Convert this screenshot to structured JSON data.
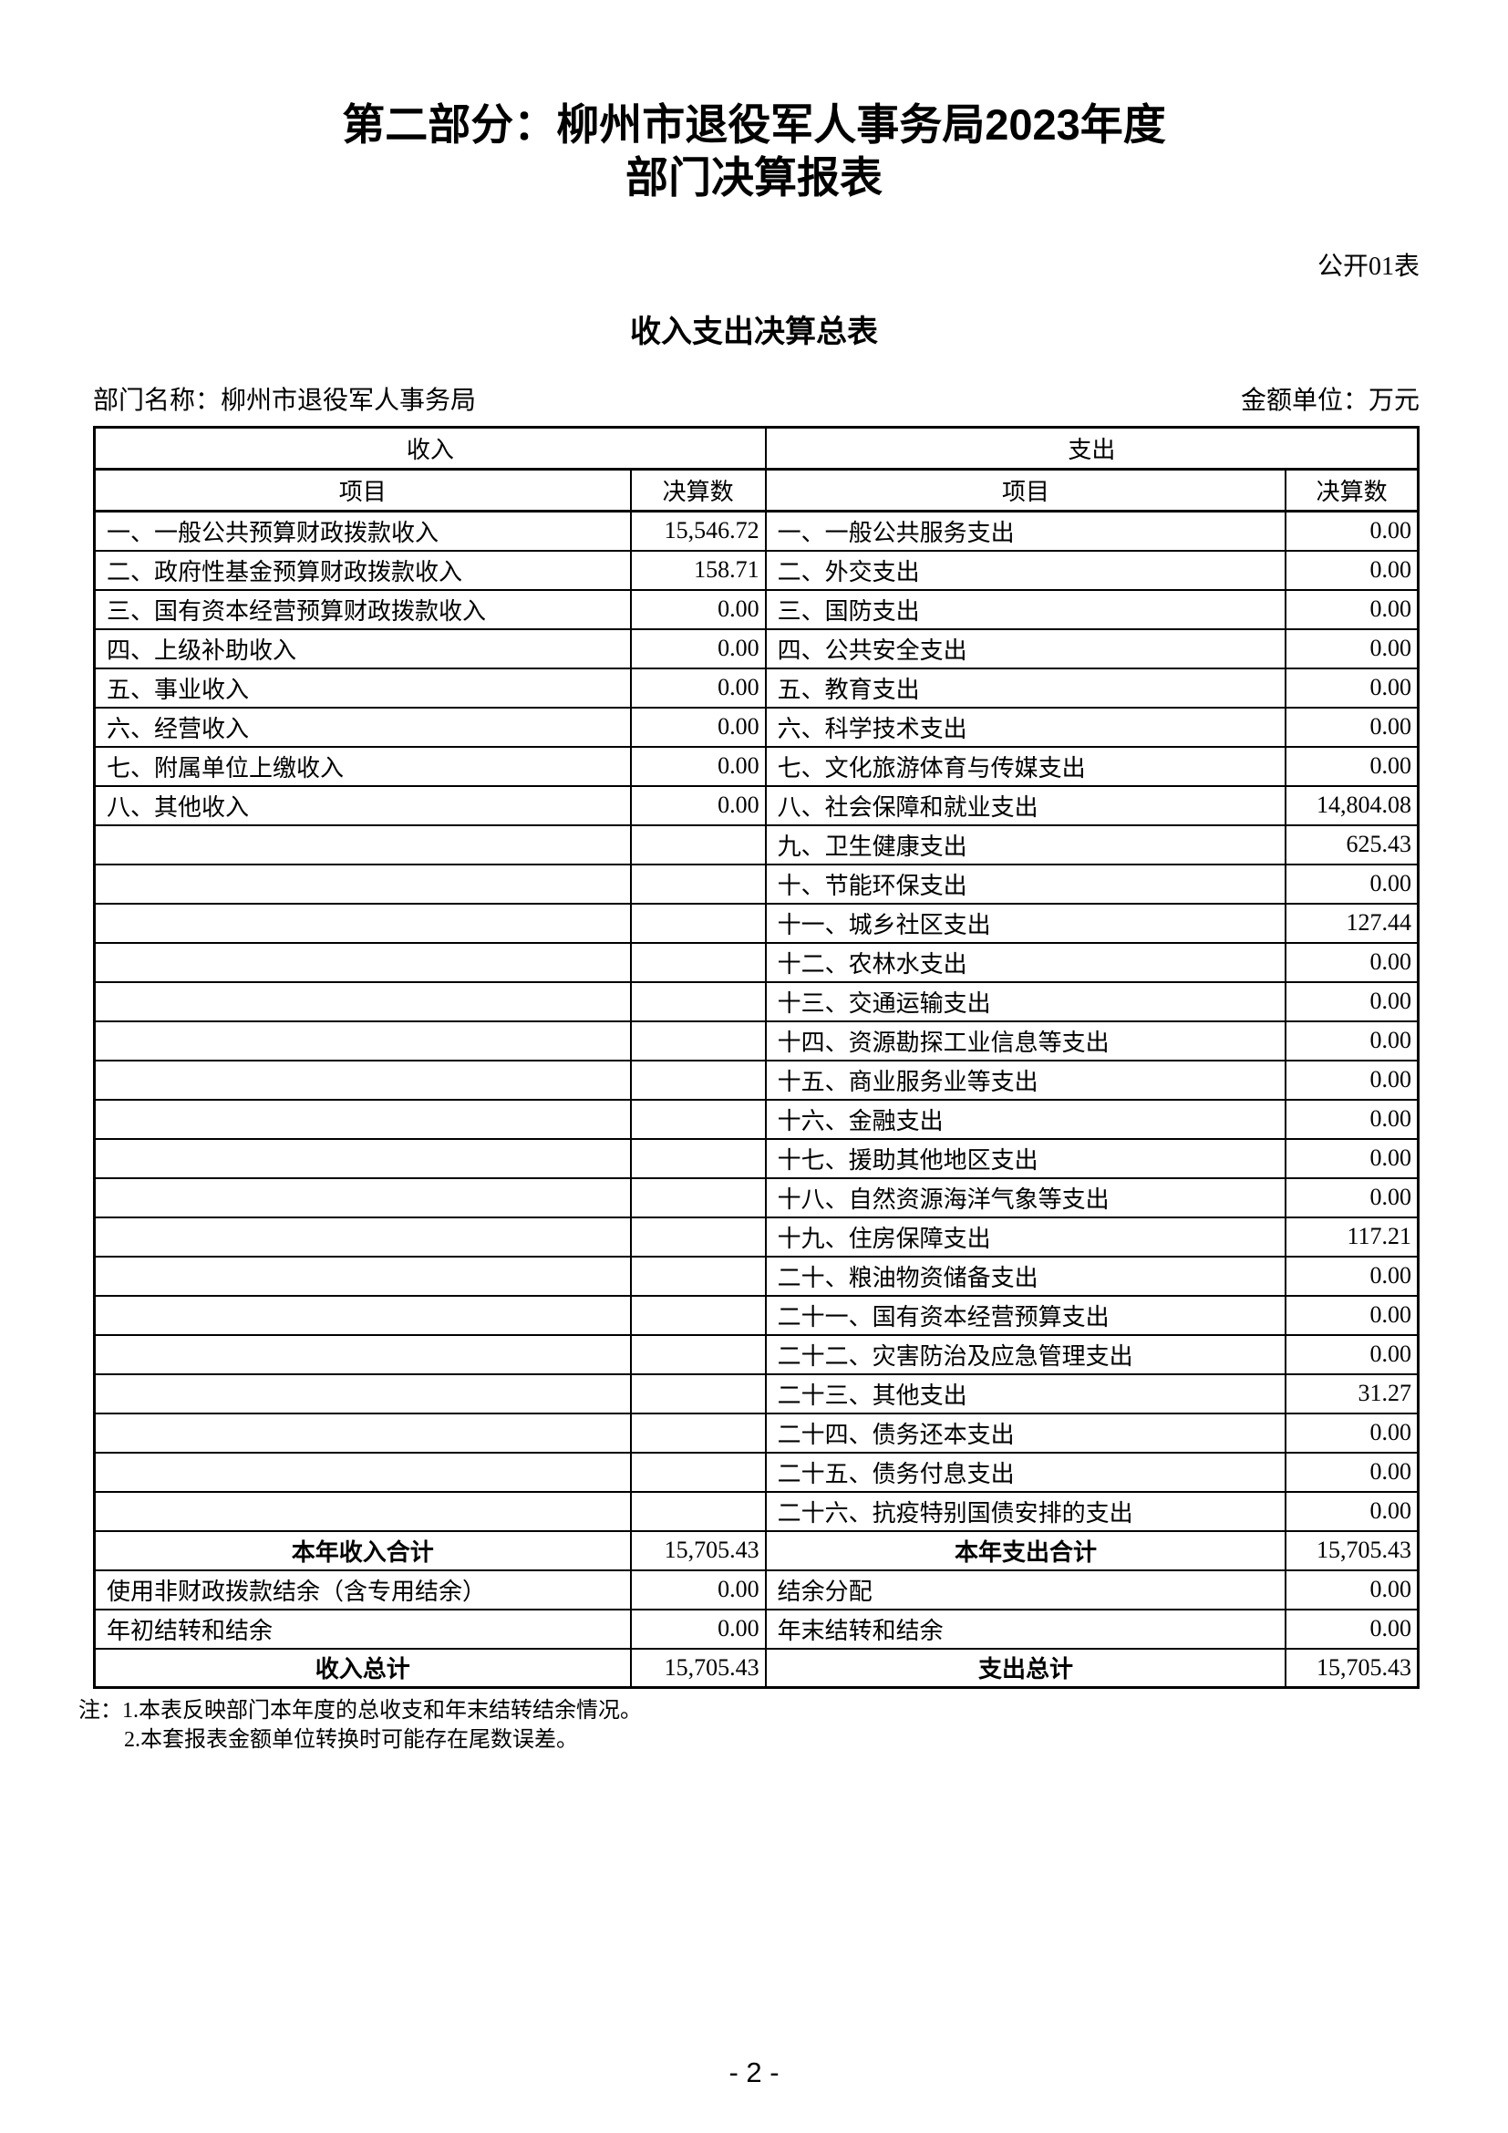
{
  "header": {
    "title_line1": "第二部分：柳州市退役军人事务局2023年度",
    "title_line2": "部门决算报表",
    "table_tag": "公开01表",
    "subtitle": "收入支出决算总表",
    "department": "部门名称：柳州市退役军人事务局",
    "unit": "金额单位：万元"
  },
  "table": {
    "income_header": "收入",
    "expense_header": "支出",
    "item_header": "项目",
    "amount_header": "决算数",
    "rows": [
      {
        "type": "normal",
        "income_item": "一、一般公共预算财政拨款收入",
        "income_amount": "15,546.72",
        "expense_item": "一、一般公共服务支出",
        "expense_amount": "0.00"
      },
      {
        "type": "normal",
        "income_item": "二、政府性基金预算财政拨款收入",
        "income_amount": "158.71",
        "expense_item": "二、外交支出",
        "expense_amount": "0.00"
      },
      {
        "type": "normal",
        "income_item": "三、国有资本经营预算财政拨款收入",
        "income_amount": "0.00",
        "expense_item": "三、国防支出",
        "expense_amount": "0.00"
      },
      {
        "type": "normal",
        "income_item": "四、上级补助收入",
        "income_amount": "0.00",
        "expense_item": "四、公共安全支出",
        "expense_amount": "0.00"
      },
      {
        "type": "normal",
        "income_item": "五、事业收入",
        "income_amount": "0.00",
        "expense_item": "五、教育支出",
        "expense_amount": "0.00"
      },
      {
        "type": "normal",
        "income_item": "六、经营收入",
        "income_amount": "0.00",
        "expense_item": "六、科学技术支出",
        "expense_amount": "0.00"
      },
      {
        "type": "normal",
        "income_item": "七、附属单位上缴收入",
        "income_amount": "0.00",
        "expense_item": "七、文化旅游体育与传媒支出",
        "expense_amount": "0.00"
      },
      {
        "type": "normal",
        "income_item": "八、其他收入",
        "income_amount": "0.00",
        "expense_item": "八、社会保障和就业支出",
        "expense_amount": "14,804.08"
      },
      {
        "type": "normal",
        "income_item": "",
        "income_amount": "",
        "expense_item": "九、卫生健康支出",
        "expense_amount": "625.43"
      },
      {
        "type": "normal",
        "income_item": "",
        "income_amount": "",
        "expense_item": "十、节能环保支出",
        "expense_amount": "0.00"
      },
      {
        "type": "normal",
        "income_item": "",
        "income_amount": "",
        "expense_item": "十一、城乡社区支出",
        "expense_amount": "127.44"
      },
      {
        "type": "normal",
        "income_item": "",
        "income_amount": "",
        "expense_item": "十二、农林水支出",
        "expense_amount": "0.00"
      },
      {
        "type": "normal",
        "income_item": "",
        "income_amount": "",
        "expense_item": "十三、交通运输支出",
        "expense_amount": "0.00"
      },
      {
        "type": "normal",
        "income_item": "",
        "income_amount": "",
        "expense_item": "十四、资源勘探工业信息等支出",
        "expense_amount": "0.00"
      },
      {
        "type": "normal",
        "income_item": "",
        "income_amount": "",
        "expense_item": "十五、商业服务业等支出",
        "expense_amount": "0.00"
      },
      {
        "type": "normal",
        "income_item": "",
        "income_amount": "",
        "expense_item": "十六、金融支出",
        "expense_amount": "0.00"
      },
      {
        "type": "normal",
        "income_item": "",
        "income_amount": "",
        "expense_item": "十七、援助其他地区支出",
        "expense_amount": "0.00"
      },
      {
        "type": "normal",
        "income_item": "",
        "income_amount": "",
        "expense_item": "十八、自然资源海洋气象等支出",
        "expense_amount": "0.00"
      },
      {
        "type": "normal",
        "income_item": "",
        "income_amount": "",
        "expense_item": "十九、住房保障支出",
        "expense_amount": "117.21"
      },
      {
        "type": "normal",
        "income_item": "",
        "income_amount": "",
        "expense_item": "二十、粮油物资储备支出",
        "expense_amount": "0.00"
      },
      {
        "type": "normal",
        "income_item": "",
        "income_amount": "",
        "expense_item": "二十一、国有资本经营预算支出",
        "expense_amount": "0.00"
      },
      {
        "type": "normal",
        "income_item": "",
        "income_amount": "",
        "expense_item": "二十二、灾害防治及应急管理支出",
        "expense_amount": "0.00"
      },
      {
        "type": "normal",
        "income_item": "",
        "income_amount": "",
        "expense_item": "二十三、其他支出",
        "expense_amount": "31.27"
      },
      {
        "type": "normal",
        "income_item": "",
        "income_amount": "",
        "expense_item": "二十四、债务还本支出",
        "expense_amount": "0.00"
      },
      {
        "type": "normal",
        "income_item": "",
        "income_amount": "",
        "expense_item": "二十五、债务付息支出",
        "expense_amount": "0.00"
      },
      {
        "type": "normal",
        "income_item": "",
        "income_amount": "",
        "expense_item": "二十六、抗疫特别国债安排的支出",
        "expense_amount": "0.00"
      },
      {
        "type": "total",
        "income_item": "本年收入合计",
        "income_amount": "15,705.43",
        "expense_item": "本年支出合计",
        "expense_amount": "15,705.43"
      },
      {
        "type": "normal",
        "income_item": "使用非财政拨款结余（含专用结余）",
        "income_amount": "0.00",
        "expense_item": "结余分配",
        "expense_amount": "0.00"
      },
      {
        "type": "normal",
        "income_item": "年初结转和结余",
        "income_amount": "0.00",
        "expense_item": "年末结转和结余",
        "expense_amount": "0.00"
      },
      {
        "type": "total",
        "income_item": "收入总计",
        "income_amount": "15,705.43",
        "expense_item": "支出总计",
        "expense_amount": "15,705.43"
      }
    ]
  },
  "notes": [
    "注：1.本表反映部门本年度的总收支和年末结转结余情况。",
    "2.本套报表金额单位转换时可能存在尾数误差。"
  ],
  "footer": {
    "page_number": "- 2 -"
  }
}
